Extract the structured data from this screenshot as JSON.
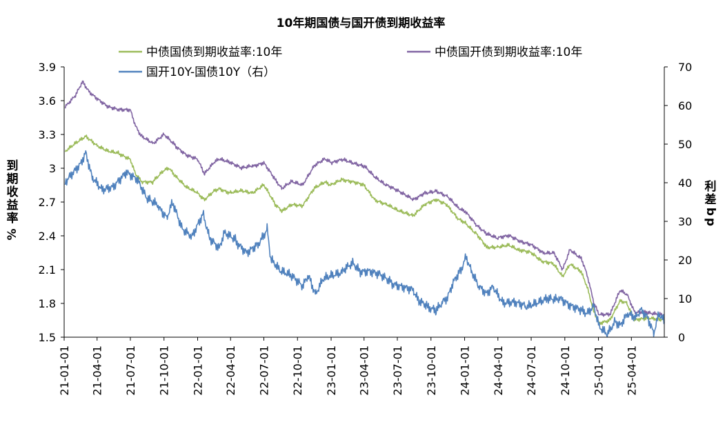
{
  "chart_data": {
    "type": "line",
    "title": "10年期国债与国开债到期收益率",
    "ylabel_left_chars": [
      "到",
      "期",
      "收",
      "益",
      "率",
      "%"
    ],
    "ylabel_right_chars": [
      "利",
      "差",
      "b",
      "p"
    ],
    "y_left": {
      "min": 1.5,
      "max": 3.9,
      "ticks": [
        "1.5",
        "1.8",
        "2.1",
        "2.4",
        "2.7",
        "3",
        "3.3",
        "3.6",
        "3.9"
      ]
    },
    "y_right": {
      "min": 0,
      "max": 70,
      "ticks": [
        "0",
        "10",
        "20",
        "30",
        "40",
        "50",
        "60",
        "70"
      ]
    },
    "x": {
      "start": "2021-01-01",
      "end": "2025-06-30",
      "ticks": [
        "21-01-01",
        "21-04-01",
        "21-07-01",
        "21-10-01",
        "22-01-01",
        "22-04-01",
        "22-07-01",
        "22-10-01",
        "23-01-01",
        "23-04-01",
        "23-07-01",
        "23-10-01",
        "24-01-01",
        "24-04-01",
        "24-07-01",
        "24-10-01",
        "25-01-01",
        "25-04-01"
      ]
    },
    "legend_position": "top",
    "grid": false,
    "series": [
      {
        "name": "中债国债到期收益率:10年",
        "axis": "left",
        "color": "#9bbb59",
        "points": [
          [
            "2021-01-04",
            3.15
          ],
          [
            "2021-02-01",
            3.22
          ],
          [
            "2021-03-01",
            3.28
          ],
          [
            "2021-04-01",
            3.2
          ],
          [
            "2021-05-01",
            3.15
          ],
          [
            "2021-06-01",
            3.13
          ],
          [
            "2021-07-01",
            3.08
          ],
          [
            "2021-07-15",
            2.95
          ],
          [
            "2021-08-01",
            2.88
          ],
          [
            "2021-09-01",
            2.88
          ],
          [
            "2021-10-01",
            2.98
          ],
          [
            "2021-10-15",
            3.0
          ],
          [
            "2021-11-01",
            2.93
          ],
          [
            "2021-12-01",
            2.83
          ],
          [
            "2022-01-01",
            2.78
          ],
          [
            "2022-01-20",
            2.72
          ],
          [
            "2022-02-15",
            2.8
          ],
          [
            "2022-03-01",
            2.82
          ],
          [
            "2022-04-01",
            2.78
          ],
          [
            "2022-05-01",
            2.8
          ],
          [
            "2022-06-01",
            2.78
          ],
          [
            "2022-07-01",
            2.85
          ],
          [
            "2022-08-01",
            2.68
          ],
          [
            "2022-08-20",
            2.62
          ],
          [
            "2022-09-15",
            2.68
          ],
          [
            "2022-10-15",
            2.67
          ],
          [
            "2022-11-15",
            2.82
          ],
          [
            "2022-12-15",
            2.88
          ],
          [
            "2023-01-01",
            2.85
          ],
          [
            "2023-02-01",
            2.9
          ],
          [
            "2023-03-01",
            2.88
          ],
          [
            "2023-04-01",
            2.85
          ],
          [
            "2023-05-01",
            2.72
          ],
          [
            "2023-06-01",
            2.68
          ],
          [
            "2023-07-01",
            2.63
          ],
          [
            "2023-08-15",
            2.58
          ],
          [
            "2023-09-15",
            2.68
          ],
          [
            "2023-10-15",
            2.72
          ],
          [
            "2023-11-15",
            2.67
          ],
          [
            "2023-12-15",
            2.55
          ],
          [
            "2024-01-01",
            2.52
          ],
          [
            "2024-02-01",
            2.42
          ],
          [
            "2024-03-01",
            2.3
          ],
          [
            "2024-04-01",
            2.3
          ],
          [
            "2024-05-01",
            2.32
          ],
          [
            "2024-06-01",
            2.27
          ],
          [
            "2024-07-01",
            2.25
          ],
          [
            "2024-08-01",
            2.17
          ],
          [
            "2024-09-01",
            2.15
          ],
          [
            "2024-09-25",
            2.04
          ],
          [
            "2024-10-15",
            2.15
          ],
          [
            "2024-11-15",
            2.08
          ],
          [
            "2024-12-01",
            1.95
          ],
          [
            "2024-12-20",
            1.72
          ],
          [
            "2025-01-03",
            1.62
          ],
          [
            "2025-02-01",
            1.65
          ],
          [
            "2025-03-01",
            1.82
          ],
          [
            "2025-03-20",
            1.8
          ],
          [
            "2025-04-10",
            1.65
          ],
          [
            "2025-05-15",
            1.67
          ],
          [
            "2025-06-30",
            1.65
          ]
        ]
      },
      {
        "name": "中债国开债到期收益率:10年",
        "axis": "left",
        "color": "#8064a2",
        "points": [
          [
            "2021-01-04",
            3.55
          ],
          [
            "2021-02-01",
            3.65
          ],
          [
            "2021-02-20",
            3.77
          ],
          [
            "2021-03-10",
            3.68
          ],
          [
            "2021-04-01",
            3.62
          ],
          [
            "2021-05-01",
            3.55
          ],
          [
            "2021-06-01",
            3.52
          ],
          [
            "2021-07-01",
            3.52
          ],
          [
            "2021-07-15",
            3.38
          ],
          [
            "2021-08-01",
            3.28
          ],
          [
            "2021-09-01",
            3.22
          ],
          [
            "2021-10-01",
            3.3
          ],
          [
            "2021-11-01",
            3.2
          ],
          [
            "2021-12-01",
            3.12
          ],
          [
            "2022-01-01",
            3.08
          ],
          [
            "2022-01-20",
            2.95
          ],
          [
            "2022-02-15",
            3.05
          ],
          [
            "2022-03-01",
            3.08
          ],
          [
            "2022-04-01",
            3.05
          ],
          [
            "2022-05-01",
            3.0
          ],
          [
            "2022-06-01",
            3.02
          ],
          [
            "2022-07-01",
            3.05
          ],
          [
            "2022-08-01",
            2.9
          ],
          [
            "2022-08-20",
            2.82
          ],
          [
            "2022-09-15",
            2.88
          ],
          [
            "2022-10-15",
            2.85
          ],
          [
            "2022-11-15",
            3.02
          ],
          [
            "2022-12-15",
            3.08
          ],
          [
            "2023-01-01",
            3.05
          ],
          [
            "2023-02-01",
            3.08
          ],
          [
            "2023-03-01",
            3.05
          ],
          [
            "2023-04-01",
            3.02
          ],
          [
            "2023-05-01",
            2.92
          ],
          [
            "2023-06-01",
            2.85
          ],
          [
            "2023-07-01",
            2.8
          ],
          [
            "2023-08-15",
            2.72
          ],
          [
            "2023-09-15",
            2.78
          ],
          [
            "2023-10-15",
            2.8
          ],
          [
            "2023-11-15",
            2.75
          ],
          [
            "2023-12-15",
            2.65
          ],
          [
            "2024-01-01",
            2.62
          ],
          [
            "2024-02-01",
            2.5
          ],
          [
            "2024-03-01",
            2.42
          ],
          [
            "2024-04-01",
            2.38
          ],
          [
            "2024-05-01",
            2.4
          ],
          [
            "2024-06-01",
            2.35
          ],
          [
            "2024-07-01",
            2.32
          ],
          [
            "2024-08-01",
            2.25
          ],
          [
            "2024-09-01",
            2.25
          ],
          [
            "2024-09-25",
            2.1
          ],
          [
            "2024-10-15",
            2.28
          ],
          [
            "2024-11-15",
            2.2
          ],
          [
            "2024-12-01",
            2.05
          ],
          [
            "2024-12-20",
            1.8
          ],
          [
            "2025-01-03",
            1.7
          ],
          [
            "2025-02-01",
            1.7
          ],
          [
            "2025-03-01",
            1.92
          ],
          [
            "2025-03-20",
            1.88
          ],
          [
            "2025-04-10",
            1.72
          ],
          [
            "2025-05-15",
            1.72
          ],
          [
            "2025-06-30",
            1.7
          ]
        ]
      },
      {
        "name": "国开10Y-国债10Y（右）",
        "axis": "right",
        "color": "#4f81bd",
        "points": [
          [
            "2021-01-04",
            40
          ],
          [
            "2021-01-20",
            42
          ],
          [
            "2021-02-15",
            45
          ],
          [
            "2021-03-01",
            48
          ],
          [
            "2021-03-20",
            41
          ],
          [
            "2021-04-15",
            38
          ],
          [
            "2021-05-15",
            39
          ],
          [
            "2021-06-20",
            43
          ],
          [
            "2021-07-20",
            41
          ],
          [
            "2021-08-15",
            36
          ],
          [
            "2021-09-15",
            34
          ],
          [
            "2021-10-10",
            31
          ],
          [
            "2021-10-25",
            35
          ],
          [
            "2021-11-20",
            28
          ],
          [
            "2021-12-15",
            26
          ],
          [
            "2022-01-15",
            32
          ],
          [
            "2022-02-01",
            26
          ],
          [
            "2022-03-01",
            23
          ],
          [
            "2022-03-15",
            27
          ],
          [
            "2022-04-15",
            25
          ],
          [
            "2022-05-15",
            22
          ],
          [
            "2022-06-15",
            24
          ],
          [
            "2022-07-10",
            28
          ],
          [
            "2022-07-20",
            20
          ],
          [
            "2022-08-15",
            17
          ],
          [
            "2022-09-15",
            16
          ],
          [
            "2022-10-15",
            13
          ],
          [
            "2022-11-01",
            16
          ],
          [
            "2022-11-20",
            11
          ],
          [
            "2022-12-10",
            15
          ],
          [
            "2023-01-01",
            16
          ],
          [
            "2023-02-01",
            17
          ],
          [
            "2023-03-01",
            19
          ],
          [
            "2023-03-20",
            17
          ],
          [
            "2023-04-15",
            17
          ],
          [
            "2023-05-15",
            16
          ],
          [
            "2023-06-15",
            14
          ],
          [
            "2023-07-15",
            13
          ],
          [
            "2023-08-15",
            12
          ],
          [
            "2023-09-01",
            9
          ],
          [
            "2023-09-20",
            8
          ],
          [
            "2023-10-15",
            7
          ],
          [
            "2023-11-01",
            9
          ],
          [
            "2023-11-15",
            10
          ],
          [
            "2023-12-01",
            14
          ],
          [
            "2023-12-20",
            17
          ],
          [
            "2024-01-05",
            21
          ],
          [
            "2024-01-20",
            17
          ],
          [
            "2024-02-10",
            13
          ],
          [
            "2024-03-01",
            11
          ],
          [
            "2024-03-20",
            13
          ],
          [
            "2024-04-15",
            9
          ],
          [
            "2024-05-15",
            9
          ],
          [
            "2024-06-15",
            8
          ],
          [
            "2024-07-15",
            9
          ],
          [
            "2024-08-15",
            10
          ],
          [
            "2024-09-15",
            10
          ],
          [
            "2024-10-15",
            8
          ],
          [
            "2024-11-15",
            7
          ],
          [
            "2024-12-01",
            6
          ],
          [
            "2024-12-20",
            8
          ],
          [
            "2025-01-03",
            3
          ],
          [
            "2025-01-25",
            1
          ],
          [
            "2025-02-15",
            4
          ],
          [
            "2025-03-01",
            3
          ],
          [
            "2025-03-20",
            6
          ],
          [
            "2025-04-10",
            5
          ],
          [
            "2025-04-25",
            7
          ],
          [
            "2025-05-15",
            5
          ],
          [
            "2025-06-01",
            1
          ],
          [
            "2025-06-15",
            6
          ],
          [
            "2025-06-30",
            4
          ]
        ]
      }
    ]
  }
}
